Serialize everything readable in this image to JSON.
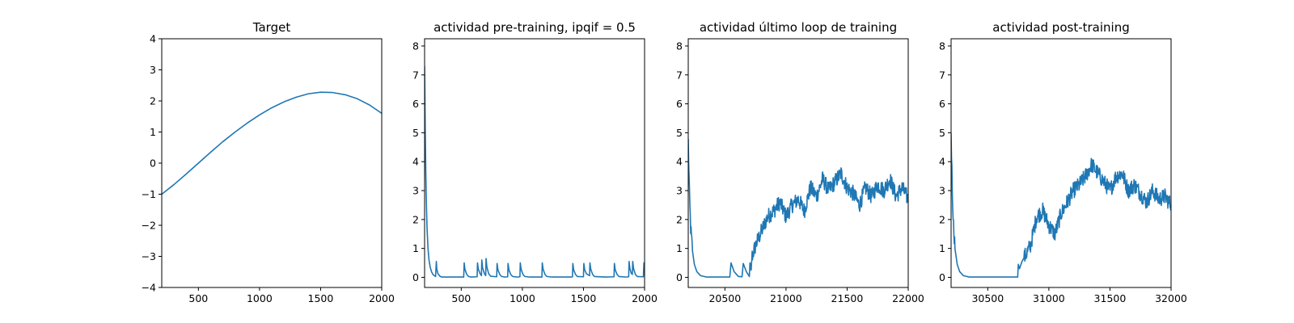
{
  "chart_data": [
    {
      "type": "line",
      "title": "Target",
      "xlim": [
        200,
        2000
      ],
      "ylim": [
        -4,
        4
      ],
      "xticks": [
        500,
        1000,
        1500,
        2000
      ],
      "yticks": [
        -4,
        -3,
        -2,
        -1,
        0,
        1,
        2,
        3,
        4
      ],
      "series": [
        {
          "x": [
            200,
            300,
            400,
            500,
            600,
            700,
            800,
            900,
            1000,
            1100,
            1200,
            1300,
            1400,
            1500,
            1600,
            1700,
            1800,
            1900,
            2000
          ],
          "y": [
            -1.0,
            -0.69,
            -0.35,
            0.0,
            0.35,
            0.69,
            1.0,
            1.29,
            1.55,
            1.78,
            1.97,
            2.12,
            2.23,
            2.28,
            2.27,
            2.2,
            2.07,
            1.87,
            1.6
          ]
        }
      ],
      "color": "#1f77b4"
    },
    {
      "type": "line",
      "title": "actividad pre-training, ipqif = 0.5",
      "xlim": [
        200,
        2000
      ],
      "ylim": [
        -0.35,
        8.25
      ],
      "xticks": [
        500,
        1000,
        1500,
        2000
      ],
      "yticks": [
        0,
        1,
        2,
        3,
        4,
        5,
        6,
        7,
        8
      ],
      "series": [
        {
          "x": [
            200,
            205,
            210,
            215,
            220,
            228,
            236,
            246,
            258,
            272,
            290,
            296,
            300,
            310,
            325,
            340,
            520,
            524,
            530,
            545,
            560,
            580,
            630,
            633,
            640,
            655,
            665,
            668,
            675,
            690,
            700,
            703,
            710,
            725,
            740,
            790,
            793,
            800,
            815,
            830,
            860,
            880,
            883,
            890,
            905,
            920,
            960,
            980,
            983,
            990,
            1005,
            1020,
            1060,
            1160,
            1163,
            1170,
            1185,
            1200,
            1240,
            1400,
            1410,
            1413,
            1420,
            1435,
            1450,
            1500,
            1503,
            1510,
            1525,
            1550,
            1553,
            1560,
            1575,
            1590,
            1680,
            1750,
            1753,
            1760,
            1775,
            1790,
            1850,
            1870,
            1873,
            1880,
            1890,
            1900,
            1903,
            1910,
            1925,
            1940,
            1990,
            1995,
            2000
          ],
          "y": [
            7.3,
            5.2,
            3.6,
            2.5,
            1.7,
            1.0,
            0.6,
            0.35,
            0.18,
            0.08,
            0.03,
            0.55,
            0.28,
            0.12,
            0.04,
            0.01,
            0.01,
            0.5,
            0.28,
            0.1,
            0.03,
            0.01,
            0.02,
            0.5,
            0.28,
            0.12,
            0.06,
            0.6,
            0.32,
            0.12,
            0.06,
            0.65,
            0.35,
            0.12,
            0.04,
            0.02,
            0.48,
            0.26,
            0.1,
            0.03,
            0.01,
            0.02,
            0.48,
            0.26,
            0.1,
            0.03,
            0.01,
            0.02,
            0.5,
            0.28,
            0.1,
            0.03,
            0.01,
            0.01,
            0.5,
            0.28,
            0.1,
            0.03,
            0.01,
            0.01,
            0.02,
            0.48,
            0.26,
            0.1,
            0.03,
            0.02,
            0.48,
            0.26,
            0.12,
            0.06,
            0.5,
            0.28,
            0.1,
            0.03,
            0.01,
            0.02,
            0.48,
            0.26,
            0.1,
            0.03,
            0.01,
            0.02,
            0.55,
            0.3,
            0.15,
            0.1,
            0.55,
            0.3,
            0.1,
            0.03,
            0.02,
            0.5,
            0.3
          ]
        }
      ],
      "color": "#1f77b4"
    },
    {
      "type": "line",
      "title": "actividad último loop de training",
      "xlim": [
        20200,
        22000
      ],
      "ylim": [
        -0.35,
        8.25
      ],
      "xticks": [
        20500,
        21000,
        21500,
        22000
      ],
      "yticks": [
        0,
        1,
        2,
        3,
        4,
        5,
        6,
        7,
        8
      ],
      "series": [
        {
          "x": [
            20200,
            20210,
            20220,
            20235,
            20250,
            20270,
            20300,
            20350,
            20540,
            20550,
            20575,
            20610,
            20640,
            20650,
            20675,
            20700,
            20705,
            20715,
            20720,
            20735,
            20760,
            20800,
            20850,
            20900,
            20950,
            21000,
            21050,
            21100,
            21150,
            21200,
            21250,
            21300,
            21350,
            21400,
            21450,
            21500,
            21550,
            21600,
            21650,
            21700,
            21750,
            21800,
            21850,
            21900,
            21950,
            22000
          ],
          "y": [
            4.7,
            2.8,
            1.7,
            0.9,
            0.45,
            0.2,
            0.06,
            0.01,
            0.01,
            0.5,
            0.2,
            0.03,
            0.02,
            0.48,
            0.2,
            0.03,
            0.5,
            0.25,
            0.7,
            0.9,
            1.2,
            1.6,
            2.1,
            2.3,
            2.6,
            2.1,
            2.5,
            2.7,
            2.3,
            3.1,
            2.8,
            3.4,
            3.0,
            3.3,
            3.6,
            3.1,
            2.9,
            2.5,
            3.1,
            2.8,
            3.2,
            3.0,
            3.4,
            2.8,
            3.1,
            2.7
          ]
        }
      ],
      "noise": 0.28,
      "color": "#1f77b4"
    },
    {
      "type": "line",
      "title": "actividad post-training",
      "xlim": [
        30200,
        32000
      ],
      "ylim": [
        -0.35,
        8.25
      ],
      "xticks": [
        30500,
        31000,
        31500,
        32000
      ],
      "yticks": [
        0,
        1,
        2,
        3,
        4,
        5,
        6,
        7,
        8
      ],
      "series": [
        {
          "x": [
            30200,
            30210,
            30220,
            30235,
            30250,
            30270,
            30300,
            30350,
            30745,
            30750,
            30760,
            30780,
            30800,
            30850,
            30900,
            30950,
            31000,
            31050,
            31100,
            31150,
            31200,
            31250,
            31300,
            31350,
            31400,
            31450,
            31500,
            31550,
            31600,
            31650,
            31700,
            31750,
            31800,
            31850,
            31900,
            31950,
            32000
          ],
          "y": [
            5.0,
            3.0,
            1.8,
            0.9,
            0.45,
            0.2,
            0.06,
            0.01,
            0.01,
            0.45,
            0.3,
            0.55,
            0.7,
            1.1,
            2.1,
            2.3,
            1.8,
            1.5,
            2.2,
            2.6,
            3.0,
            3.2,
            3.5,
            3.9,
            3.6,
            3.3,
            3.0,
            3.5,
            3.6,
            3.0,
            3.2,
            2.9,
            2.6,
            3.0,
            2.7,
            2.8,
            2.5
          ]
        }
      ],
      "noise": 0.28,
      "color": "#1f77b4"
    }
  ]
}
